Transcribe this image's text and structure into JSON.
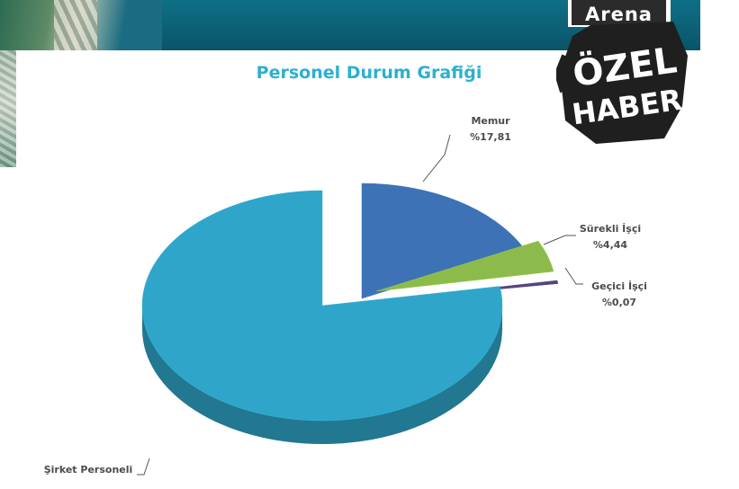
{
  "header": {
    "logo_text": "Arena"
  },
  "badge": {
    "line1": "ÖZEL",
    "line2": "HABER"
  },
  "chart_data": {
    "type": "pie",
    "title": "Personel Durum Grafiği",
    "slices": [
      {
        "name": "Memur",
        "label": "%17,81",
        "value": 17.81,
        "color": "#3e72b6"
      },
      {
        "name": "Sürekli İşçi",
        "label": "%4,44",
        "value": 4.44,
        "color": "#8dbb4b"
      },
      {
        "name": "Geçici İşçi",
        "label": "%0,07",
        "value": 0.07,
        "color": "#55457e"
      },
      {
        "name": "Şirket Personeli",
        "label": "",
        "value": 77.68,
        "color": "#2fa5c9"
      }
    ],
    "exploded": true,
    "three_d": true
  }
}
